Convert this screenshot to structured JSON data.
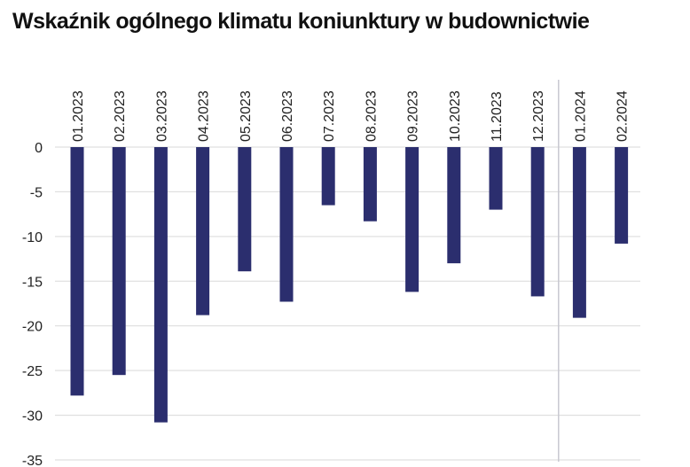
{
  "chart_data": {
    "type": "bar",
    "title": "Wskaźnik ogólnego klimatu koniunktury w budownictwie",
    "xlabel": "",
    "ylabel": "",
    "categories": [
      "01.2023",
      "02.2023",
      "03.2023",
      "04.2023",
      "05.2023",
      "06.2023",
      "07.2023",
      "08.2023",
      "09.2023",
      "10.2023",
      "11.2023",
      "12.2023",
      "01.2024",
      "02.2024"
    ],
    "values": [
      -27.8,
      -25.5,
      -30.8,
      -18.8,
      -13.9,
      -17.3,
      -6.5,
      -8.3,
      -16.2,
      -13.0,
      -7.0,
      -16.7,
      -19.1,
      -10.8
    ],
    "ylim": [
      -35,
      0
    ],
    "yticks": [
      0,
      -5,
      -10,
      -15,
      -20,
      -25,
      -30,
      -35
    ],
    "grid": true,
    "colors": {
      "bar": "#2b2e6e",
      "grid": "#d9d9d9",
      "separator": "#c8c8d0"
    }
  }
}
